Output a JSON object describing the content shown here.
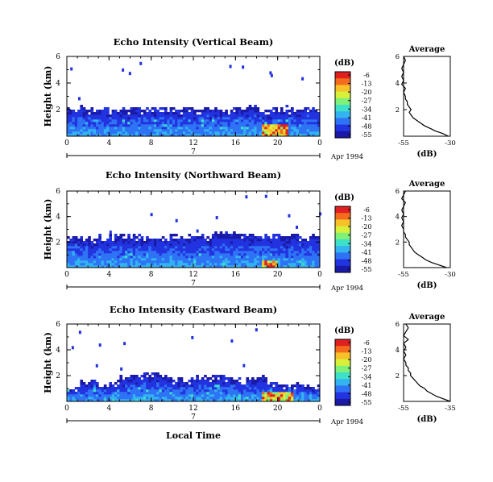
{
  "figure": {
    "date_label": "Apr 1994",
    "day_label": "7",
    "xlabel": "Local Time",
    "colorbar_unit": "(dB)",
    "avg_title": "Average",
    "avg_xlabel": "(dB)",
    "colormap": [
      "#1a1aa6",
      "#2233e0",
      "#2f73f5",
      "#33b3f0",
      "#3fe0c8",
      "#7ff07a",
      "#d8f03a",
      "#f7c12a",
      "#f36b1c",
      "#e02020"
    ]
  },
  "chart_data": [
    {
      "type": "heatmap",
      "title": "Echo Intensity (Vertical Beam)",
      "ylabel": "Height (km)",
      "xlim": [
        0,
        24
      ],
      "ylim": [
        0,
        6
      ],
      "x_ticks": [
        "0",
        "4",
        "8",
        "12",
        "16",
        "20",
        "0"
      ],
      "y_ticks": [
        "2",
        "4",
        "6"
      ],
      "colorbar": {
        "unit": "(dB)",
        "ticks": [
          "-6",
          "-13",
          "-20",
          "-27",
          "-34",
          "-41",
          "-48",
          "-55"
        ]
      },
      "echo_top_km": [
        2.0,
        2.1,
        2.0,
        2.1,
        2.0,
        2.0,
        2.1,
        2.0,
        2.0,
        2.1,
        2.0,
        2.1,
        2.0,
        2.0,
        2.1,
        2.0,
        2.0,
        2.1,
        2.0,
        2.0,
        2.1,
        2.0,
        2.0,
        2.1,
        2.0
      ],
      "strong_echo": {
        "hours": [
          18.5,
          21
        ],
        "height_km": [
          0,
          0.9
        ]
      },
      "average_profile": {
        "xlim": [
          -55,
          -30
        ],
        "x_ticks": [
          "-55",
          "-30"
        ],
        "y_ticks": [
          "2",
          "4",
          "6"
        ],
        "height_km": [
          0.0,
          0.2,
          0.4,
          0.6,
          0.8,
          1.0,
          1.2,
          1.4,
          1.6,
          1.8,
          2.0,
          2.2,
          2.4,
          2.6,
          2.8,
          3.0,
          3.3,
          3.6,
          3.9,
          4.2,
          4.5,
          4.8,
          5.1,
          5.4,
          5.7,
          6.0
        ],
        "db": [
          -31,
          -34,
          -38,
          -41,
          -44,
          -46,
          -48,
          -50,
          -51,
          -52,
          -51,
          -52,
          -53,
          -53,
          -54,
          -54,
          -55,
          -54,
          -56,
          -55,
          -56,
          -55,
          -56,
          -55,
          -54,
          -55
        ]
      }
    },
    {
      "type": "heatmap",
      "title": "Echo Intensity (Northward Beam)",
      "ylabel": "Height (km)",
      "xlim": [
        0,
        24
      ],
      "ylim": [
        0,
        6
      ],
      "x_ticks": [
        "0",
        "4",
        "8",
        "12",
        "16",
        "20",
        "0"
      ],
      "y_ticks": [
        "2",
        "4",
        "6"
      ],
      "colorbar": {
        "unit": "(dB)",
        "ticks": [
          "-6",
          "-13",
          "-20",
          "-27",
          "-34",
          "-41",
          "-48",
          "-55"
        ]
      },
      "echo_top_km": [
        2.4,
        2.4,
        2.3,
        2.4,
        2.5,
        2.6,
        2.5,
        2.4,
        2.3,
        2.4,
        2.5,
        2.4,
        2.4,
        2.5,
        2.6,
        2.7,
        2.6,
        2.5,
        2.6,
        2.5,
        2.4,
        2.5,
        2.4,
        2.5,
        2.4
      ],
      "strong_echo": {
        "hours": [
          18.5,
          20
        ],
        "height_km": [
          0,
          0.5
        ]
      },
      "average_profile": {
        "xlim": [
          -55,
          -30
        ],
        "x_ticks": [
          "-55",
          "-30"
        ],
        "y_ticks": [
          "2",
          "4",
          "6"
        ],
        "height_km": [
          0.0,
          0.2,
          0.4,
          0.6,
          0.8,
          1.0,
          1.2,
          1.4,
          1.6,
          1.8,
          2.0,
          2.2,
          2.4,
          2.6,
          2.8,
          3.0,
          3.3,
          3.6,
          3.9,
          4.2,
          4.5,
          4.8,
          5.1,
          5.4,
          5.7,
          6.0
        ],
        "db": [
          -32,
          -36,
          -40,
          -43,
          -45,
          -47,
          -49,
          -50,
          -51,
          -52,
          -52,
          -53,
          -54,
          -54,
          -55,
          -55,
          -56,
          -55,
          -56,
          -55,
          -56,
          -55,
          -54,
          -56,
          -55,
          -54
        ]
      }
    },
    {
      "type": "heatmap",
      "title": "Echo Intensity (Eastward Beam)",
      "ylabel": "Height (km)",
      "xlabel": "Local Time",
      "xlim": [
        0,
        24
      ],
      "ylim": [
        0,
        6
      ],
      "x_ticks": [
        "0",
        "4",
        "8",
        "12",
        "16",
        "20",
        "0"
      ],
      "y_ticks": [
        "2",
        "4",
        "6"
      ],
      "colorbar": {
        "unit": "(dB)",
        "ticks": [
          "-6",
          "-13",
          "-20",
          "-27",
          "-34",
          "-41",
          "-48",
          "-55"
        ]
      },
      "echo_top_km": [
        1.0,
        1.4,
        1.6,
        1.2,
        1.5,
        1.8,
        1.9,
        2.0,
        2.1,
        1.9,
        1.7,
        1.6,
        1.8,
        1.9,
        2.0,
        1.8,
        1.6,
        1.7,
        1.8,
        1.5,
        1.3,
        1.4,
        1.2,
        1.1,
        1.0
      ],
      "strong_echo": {
        "hours": [
          18.5,
          21.5
        ],
        "height_km": [
          0,
          0.6
        ]
      },
      "average_profile": {
        "xlim": [
          -55,
          -35
        ],
        "x_ticks": [
          "-55",
          "-35"
        ],
        "y_ticks": [
          "2",
          "4",
          "6"
        ],
        "height_km": [
          0.0,
          0.2,
          0.4,
          0.6,
          0.8,
          1.0,
          1.2,
          1.4,
          1.6,
          1.8,
          2.0,
          2.2,
          2.4,
          2.6,
          2.8,
          3.0,
          3.3,
          3.6,
          3.9,
          4.2,
          4.5,
          4.8,
          5.1,
          5.4,
          5.7,
          6.0
        ],
        "db": [
          -35,
          -38,
          -41,
          -43,
          -45,
          -46,
          -48,
          -49,
          -50,
          -51,
          -52,
          -52,
          -53,
          -53,
          -54,
          -54,
          -55,
          -54,
          -55,
          -54,
          -55,
          -53,
          -55,
          -54,
          -53,
          -54
        ]
      }
    }
  ]
}
